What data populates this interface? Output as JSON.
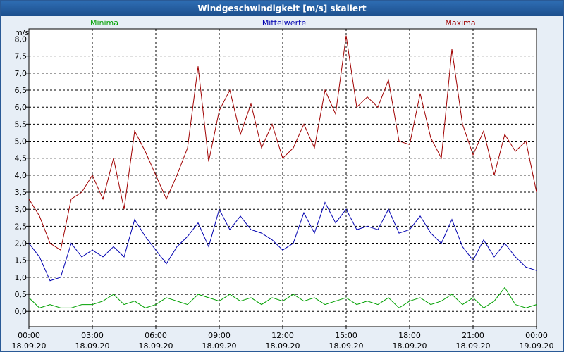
{
  "window": {
    "title": "Windgeschwindigkeit [m/s] skaliert"
  },
  "chart_data": {
    "type": "line",
    "title": "Windgeschwindigkeit [m/s] skaliert",
    "ylabel": "m/s",
    "xlabel": "",
    "ylim": [
      -0.45,
      8.3
    ],
    "grid": true,
    "y_ticks": [
      "8,0",
      "7,5",
      "7,0",
      "6,5",
      "6,0",
      "5,5",
      "5,0",
      "4,5",
      "4,0",
      "3,5",
      "3,0",
      "2,5",
      "2,0",
      "1,5",
      "1,0",
      "0,5",
      "0,0"
    ],
    "y_tick_values": [
      8.0,
      7.5,
      7.0,
      6.5,
      6.0,
      5.5,
      5.0,
      4.5,
      4.0,
      3.5,
      3.0,
      2.5,
      2.0,
      1.5,
      1.0,
      0.5,
      0.0
    ],
    "x_tick_hours": [
      0,
      3,
      6,
      9,
      12,
      15,
      18,
      21,
      24
    ],
    "x_ticks": [
      {
        "time": "00:00",
        "date": "18.09.20"
      },
      {
        "time": "03:00",
        "date": "18.09.20"
      },
      {
        "time": "06:00",
        "date": "18.09.20"
      },
      {
        "time": "09:00",
        "date": "18.09.20"
      },
      {
        "time": "12:00",
        "date": "18.09.20"
      },
      {
        "time": "15:00",
        "date": "18.09.20"
      },
      {
        "time": "18:00",
        "date": "18.09.20"
      },
      {
        "time": "21:00",
        "date": "18.09.20"
      },
      {
        "time": "00:00",
        "date": "19.09.20"
      }
    ],
    "legend": [
      {
        "name": "Minima",
        "color": "#00a000"
      },
      {
        "name": "Mittelwerte",
        "color": "#0000b0"
      },
      {
        "name": "Maxima",
        "color": "#a00000"
      }
    ],
    "x_hours": [
      0,
      0.5,
      1,
      1.5,
      2,
      2.5,
      3,
      3.5,
      4,
      4.5,
      5,
      5.5,
      6,
      6.5,
      7,
      7.5,
      8,
      8.5,
      9,
      9.5,
      10,
      10.5,
      11,
      11.5,
      12,
      12.5,
      13,
      13.5,
      14,
      14.5,
      15,
      15.5,
      16,
      16.5,
      17,
      17.5,
      18,
      18.5,
      19,
      19.5,
      20,
      20.5,
      21,
      21.5,
      22,
      22.5,
      23,
      23.5,
      24
    ],
    "series": [
      {
        "name": "Maxima",
        "color": "#a00000",
        "values": [
          3.3,
          2.8,
          2.0,
          1.8,
          3.3,
          3.5,
          4.0,
          3.3,
          4.5,
          3.0,
          5.3,
          4.7,
          4.0,
          3.3,
          4.0,
          4.8,
          7.2,
          4.4,
          5.9,
          6.5,
          5.2,
          6.1,
          4.8,
          5.5,
          4.5,
          4.8,
          5.5,
          4.8,
          6.5,
          5.8,
          8.1,
          6.0,
          6.3,
          6.0,
          6.8,
          5.0,
          4.9,
          6.4,
          5.1,
          4.5,
          7.7,
          5.5,
          4.6,
          5.3,
          4.0,
          5.2,
          4.7,
          5.0,
          3.5
        ]
      },
      {
        "name": "Mittelwerte",
        "color": "#0000b0",
        "values": [
          2.0,
          1.6,
          0.9,
          1.0,
          2.0,
          1.6,
          1.8,
          1.6,
          1.9,
          1.6,
          2.7,
          2.2,
          1.8,
          1.4,
          1.9,
          2.2,
          2.6,
          1.9,
          3.0,
          2.4,
          2.8,
          2.4,
          2.3,
          2.1,
          1.8,
          2.0,
          2.9,
          2.3,
          3.2,
          2.6,
          3.0,
          2.4,
          2.5,
          2.4,
          3.0,
          2.3,
          2.4,
          2.8,
          2.3,
          2.0,
          2.7,
          1.9,
          1.5,
          2.1,
          1.6,
          2.0,
          1.6,
          1.3,
          1.2
        ]
      },
      {
        "name": "Minima",
        "color": "#00a000",
        "values": [
          0.4,
          0.1,
          0.2,
          0.1,
          0.1,
          0.2,
          0.2,
          0.3,
          0.5,
          0.2,
          0.3,
          0.1,
          0.2,
          0.4,
          0.3,
          0.2,
          0.5,
          0.4,
          0.3,
          0.5,
          0.3,
          0.4,
          0.2,
          0.4,
          0.3,
          0.5,
          0.3,
          0.4,
          0.2,
          0.3,
          0.4,
          0.2,
          0.3,
          0.2,
          0.4,
          0.1,
          0.3,
          0.4,
          0.2,
          0.3,
          0.5,
          0.2,
          0.4,
          0.1,
          0.3,
          0.7,
          0.2,
          0.1,
          0.2
        ]
      }
    ]
  }
}
